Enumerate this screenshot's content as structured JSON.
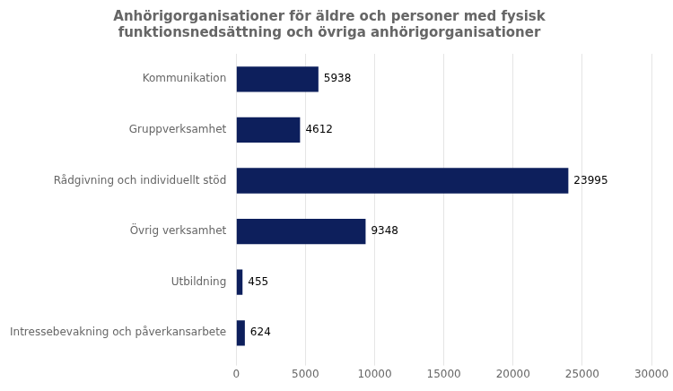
{
  "chart_data": {
    "type": "bar",
    "orientation": "horizontal",
    "title": "Anhörigorganisationer för äldre och personer med fysisk\nfunktionsnedsättning och övriga anhörigorganisationer",
    "categories": [
      "Kommunikation",
      "Gruppverksamhet",
      "Rådgivning och individuellt stöd",
      "Övrig verksamhet",
      "Utbildning",
      "Intressebevakning och påverkansarbete"
    ],
    "values": [
      5938,
      4612,
      23995,
      9348,
      455,
      624
    ],
    "color": "#0D1F5C",
    "xlim": [
      0,
      30000
    ],
    "xticks": [
      0,
      5000,
      10000,
      15000,
      20000,
      25000,
      30000
    ],
    "grid": true,
    "data_labels": true
  }
}
